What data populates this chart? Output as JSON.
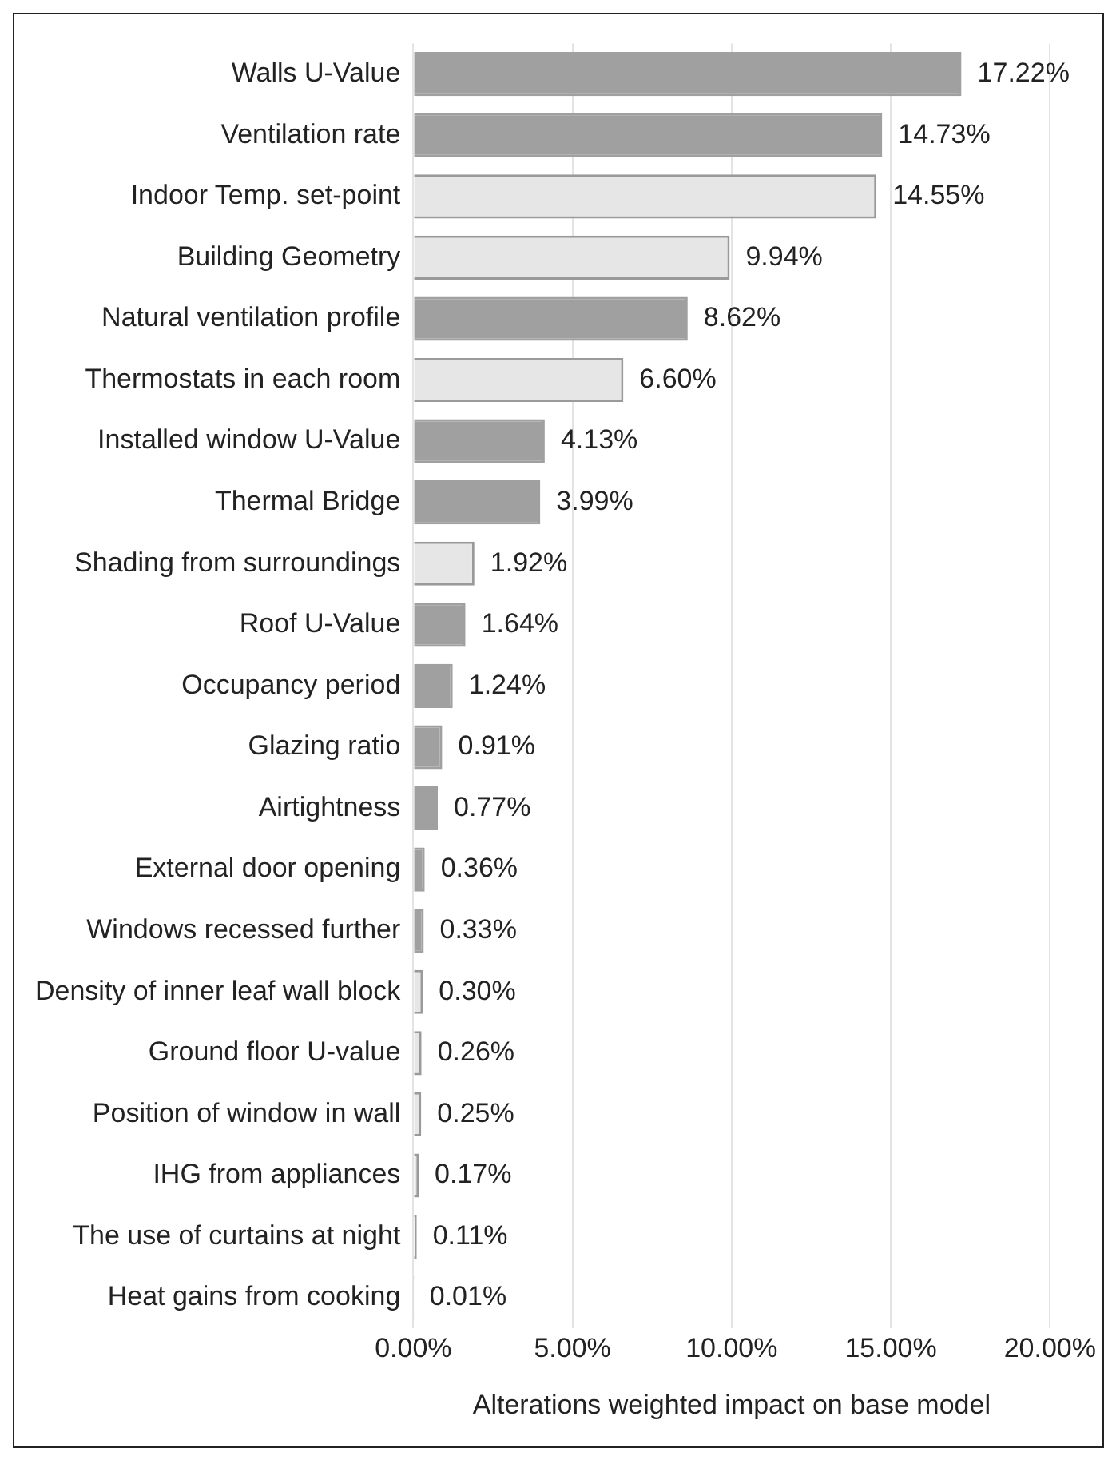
{
  "chart_data": {
    "type": "bar",
    "orientation": "horizontal",
    "xlabel": "Alterations weighted impact on base model",
    "categories": [
      "Walls U-Value",
      "Ventilation rate",
      "Indoor Temp. set-point",
      "Building Geometry",
      "Natural ventilation profile",
      "Thermostats in each room",
      "Installed window U-Value",
      "Thermal Bridge",
      "Shading from surroundings",
      "Roof U-Value",
      "Occupancy period",
      "Glazing ratio",
      "Airtightness",
      "External door opening",
      "Windows recessed further",
      "Density of inner leaf wall block",
      "Ground floor U-value",
      "Position of window in wall",
      "IHG from appliances",
      "The use of curtains at night",
      "Heat gains from cooking"
    ],
    "values": [
      17.22,
      14.73,
      14.55,
      9.94,
      8.62,
      6.6,
      4.13,
      3.99,
      1.92,
      1.64,
      1.24,
      0.91,
      0.77,
      0.36,
      0.33,
      0.3,
      0.26,
      0.25,
      0.17,
      0.11,
      0.01
    ],
    "value_labels": [
      "17.22%",
      "14.73%",
      "14.55%",
      "9.94%",
      "8.62%",
      "6.60%",
      "4.13%",
      "3.99%",
      "1.92%",
      "1.64%",
      "1.24%",
      "0.91%",
      "0.77%",
      "0.36%",
      "0.33%",
      "0.30%",
      "0.26%",
      "0.25%",
      "0.17%",
      "0.11%",
      "0.01%"
    ],
    "colors": [
      "#a0a0a0",
      "#a0a0a0",
      "#e6e6e6",
      "#e6e6e6",
      "#a0a0a0",
      "#e6e6e6",
      "#a0a0a0",
      "#a0a0a0",
      "#e6e6e6",
      "#a0a0a0",
      "#a0a0a0",
      "#a0a0a0",
      "#a0a0a0",
      "#a0a0a0",
      "#a0a0a0",
      "#e6e6e6",
      "#e6e6e6",
      "#e6e6e6",
      "#e6e6e6",
      "#e6e6e6",
      "#e6e6e6"
    ],
    "xlim": [
      0,
      20
    ],
    "xticks": [
      {
        "value": 0,
        "label": "0.00%"
      },
      {
        "value": 5,
        "label": "5.00%"
      },
      {
        "value": 10,
        "label": "10.00%"
      },
      {
        "value": 15,
        "label": "15.00%"
      },
      {
        "value": 20,
        "label": "20.00%"
      }
    ],
    "grid": "x",
    "legend": false
  }
}
